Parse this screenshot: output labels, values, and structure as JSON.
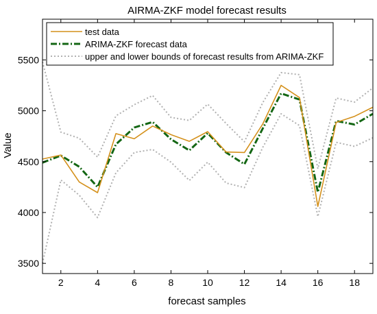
{
  "chart_data": {
    "type": "line",
    "title": "AIRMA-ZKF model forecast results",
    "xlabel": "forecast samples",
    "ylabel": "Value",
    "xlim": [
      1,
      19
    ],
    "ylim": [
      3400,
      5900
    ],
    "xticks": [
      2,
      4,
      6,
      8,
      10,
      12,
      14,
      16,
      18
    ],
    "yticks": [
      3500,
      4000,
      4500,
      5000,
      5500
    ],
    "legend_position": "top-left",
    "grid": false,
    "x": [
      1,
      2,
      3,
      4,
      5,
      6,
      7,
      8,
      9,
      10,
      11,
      12,
      13,
      14,
      15,
      16,
      17,
      18,
      19
    ],
    "series": [
      {
        "name": "test data",
        "style": "solid",
        "color": "#d4901a",
        "values": [
          4525,
          4565,
          4300,
          4195,
          4775,
          4725,
          4850,
          4765,
          4700,
          4795,
          4595,
          4590,
          4870,
          5250,
          5130,
          4060,
          4885,
          4945,
          5035
        ]
      },
      {
        "name": "ARIMA-ZKF forecast data",
        "style": "dash-dot",
        "color": "#136613",
        "values": [
          4490,
          4560,
          4450,
          4250,
          4670,
          4835,
          4890,
          4720,
          4610,
          4780,
          4590,
          4475,
          4825,
          5170,
          5110,
          4200,
          4900,
          4865,
          4970
        ]
      },
      {
        "name": "upper and lower bounds of forecast results from ARIMA-ZKF",
        "style": "dotted",
        "color": "#b0b0b0",
        "upper": [
          5480,
          4790,
          4730,
          4545,
          4950,
          5060,
          5150,
          4935,
          4905,
          5065,
          4875,
          4695,
          5080,
          5375,
          5355,
          4430,
          5125,
          5085,
          5225
        ],
        "lower": [
          3500,
          4320,
          4170,
          3950,
          4390,
          4590,
          4620,
          4495,
          4315,
          4495,
          4290,
          4245,
          4640,
          4970,
          4855,
          3960,
          4690,
          4650,
          4735
        ]
      }
    ]
  }
}
